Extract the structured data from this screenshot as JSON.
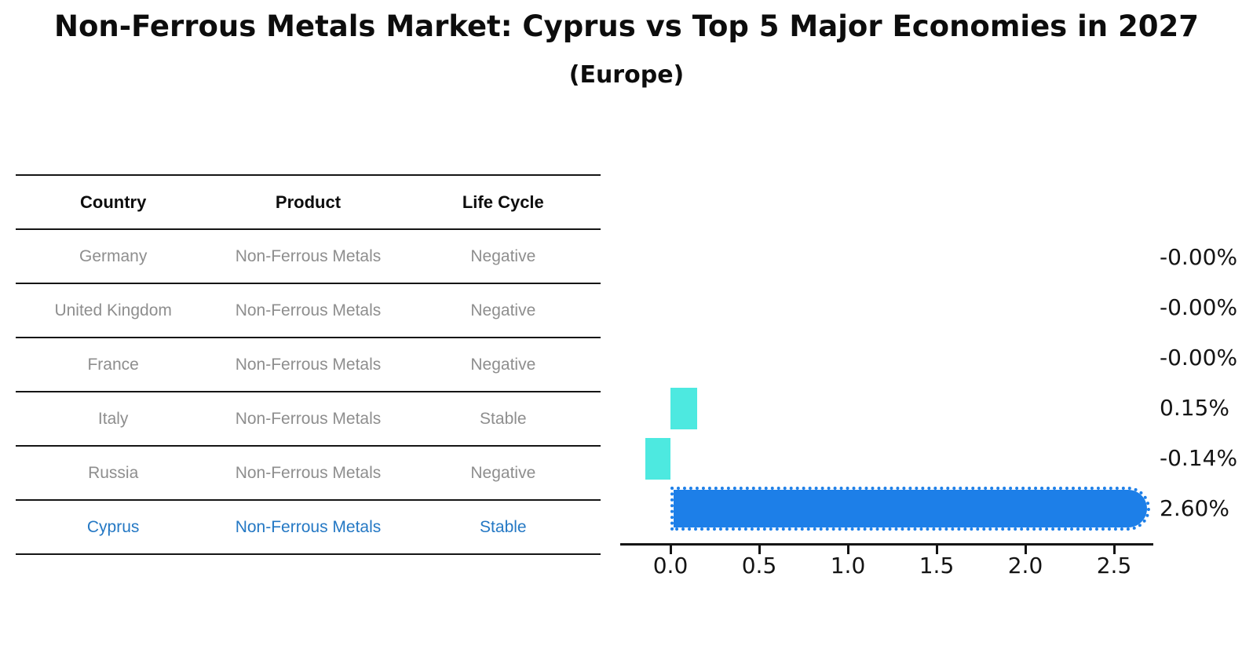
{
  "title": "Non-Ferrous Metals Market: Cyprus vs Top 5 Major Economies in 2027",
  "subtitle": "(Europe)",
  "table": {
    "headers": [
      "Country",
      "Product",
      "Life Cycle"
    ],
    "rows": [
      {
        "country": "Germany",
        "product": "Non-Ferrous Metals",
        "life_cycle": "Negative",
        "highlighted": false
      },
      {
        "country": "United Kingdom",
        "product": "Non-Ferrous Metals",
        "life_cycle": "Negative",
        "highlighted": false
      },
      {
        "country": "France",
        "product": "Non-Ferrous Metals",
        "life_cycle": "Negative",
        "highlighted": false
      },
      {
        "country": "Italy",
        "product": "Non-Ferrous Metals",
        "life_cycle": "Stable",
        "highlighted": false
      },
      {
        "country": "Russia",
        "product": "Non-Ferrous Metals",
        "life_cycle": "Negative",
        "highlighted": false
      },
      {
        "country": "Cyprus",
        "product": "Non-Ferrous Metals",
        "life_cycle": "Stable",
        "highlighted": true
      }
    ]
  },
  "chart_data": {
    "type": "bar",
    "orientation": "horizontal",
    "categories": [
      "Germany",
      "United Kingdom",
      "France",
      "Italy",
      "Russia",
      "Cyprus"
    ],
    "values": [
      -0.0,
      -0.0,
      -0.0,
      0.15,
      -0.14,
      2.6
    ],
    "value_labels": [
      "-0.00%",
      "-0.00%",
      "-0.00%",
      "0.15%",
      "-0.14%",
      "2.60%"
    ],
    "x_ticks": [
      "0.0",
      "0.5",
      "1.0",
      "1.5",
      "2.0",
      "2.5"
    ],
    "xlim": [
      -0.28,
      2.72
    ],
    "highlight_index": 5,
    "grid": false,
    "legend": "none",
    "title": "Non-Ferrous Metals Market: Cyprus vs Top 5 Major Economies in 2027 (Europe)",
    "xlabel": "",
    "ylabel": ""
  },
  "colors": {
    "background": "#ffffff",
    "bar_default": "#4de9e0",
    "bar_highlight": "#1d7fe8",
    "highlight_text": "#2478c4",
    "table_text": "#8e8e8e",
    "header_text": "#0d0d0d",
    "axis": "#141414"
  }
}
